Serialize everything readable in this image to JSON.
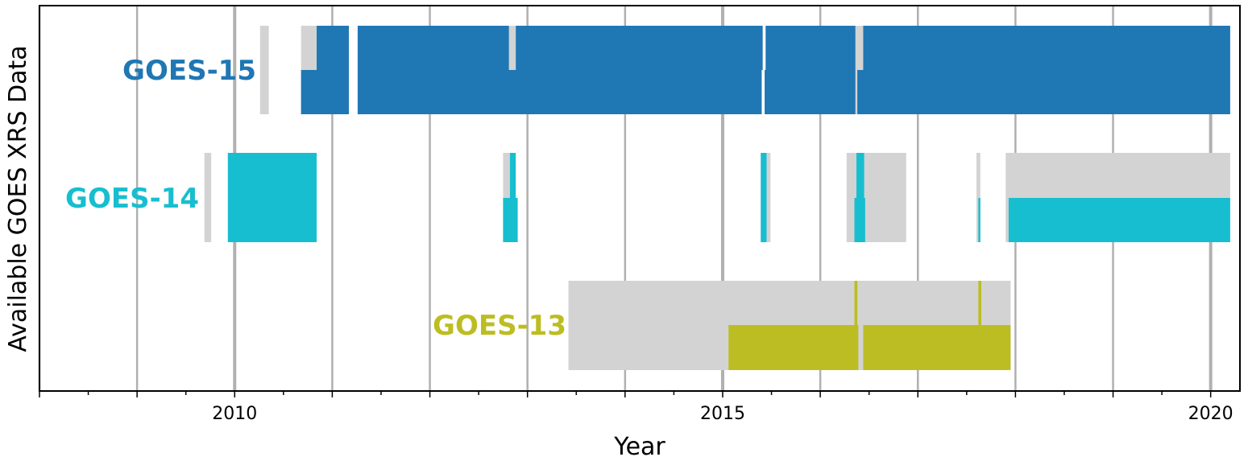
{
  "chart_data": {
    "type": "bar",
    "title": "",
    "xlabel": "Year",
    "ylabel": "Available GOES XRS Data",
    "xlim": [
      2008.0,
      2020.3
    ],
    "xticks": [
      2010,
      2015,
      2020
    ],
    "grid": true,
    "series": [
      {
        "name": "GOES-15",
        "color": "#1f77b4",
        "label_color": "#1f77b4",
        "coverage": {
          "gray": [
            [
              2010.26,
              2010.35
            ],
            [
              2010.68,
              2010.85
            ],
            [
              2012.81,
              2012.88
            ],
            [
              2016.36,
              2016.44
            ]
          ],
          "top": [
            [
              2010.84,
              2011.17
            ],
            [
              2011.26,
              2012.81
            ],
            [
              2012.88,
              2015.41
            ],
            [
              2015.44,
              2016.36
            ],
            [
              2016.44,
              2020.2
            ]
          ],
          "bottom": [
            [
              2010.68,
              2011.17
            ],
            [
              2011.26,
              2015.4
            ],
            [
              2015.43,
              2016.36
            ],
            [
              2016.38,
              2020.2
            ]
          ]
        }
      },
      {
        "name": "GOES-14",
        "color": "#17becf",
        "label_color": "#17becf",
        "coverage": {
          "gray": [
            [
              2009.69,
              2009.76
            ],
            [
              2012.75,
              2012.82
            ],
            [
              2015.45,
              2015.49
            ],
            [
              2016.27,
              2016.37
            ],
            [
              2016.45,
              2016.88
            ],
            [
              2017.6,
              2017.64
            ],
            [
              2017.9,
              2020.2
            ]
          ],
          "top": [
            [
              2009.93,
              2010.84
            ],
            [
              2012.82,
              2012.88
            ],
            [
              2015.39,
              2015.45
            ],
            [
              2016.37,
              2016.45
            ]
          ],
          "bottom": [
            [
              2009.93,
              2010.84
            ],
            [
              2012.75,
              2012.9
            ],
            [
              2015.39,
              2015.45
            ],
            [
              2016.35,
              2016.46
            ],
            [
              2017.62,
              2017.64
            ],
            [
              2017.93,
              2020.2
            ]
          ]
        }
      },
      {
        "name": "GOES-13",
        "color": "#bcbd22",
        "label_color": "#bcbd22",
        "coverage": {
          "gray": [
            [
              2013.42,
              2017.95
            ]
          ],
          "top": [
            [
              2016.35,
              2016.38
            ],
            [
              2017.62,
              2017.65
            ]
          ],
          "bottom": [
            [
              2015.06,
              2016.39
            ],
            [
              2016.44,
              2017.95
            ]
          ]
        }
      }
    ],
    "gray_color": "#d3d3d3",
    "grid_color": "#b0b0b0"
  }
}
